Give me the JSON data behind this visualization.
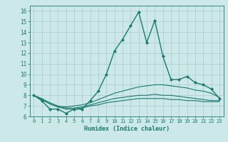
{
  "xlabel": "Humidex (Indice chaleur)",
  "xlim": [
    -0.5,
    23.5
  ],
  "ylim": [
    6,
    16.5
  ],
  "xticks": [
    0,
    1,
    2,
    3,
    4,
    5,
    6,
    7,
    8,
    9,
    10,
    11,
    12,
    13,
    14,
    15,
    16,
    17,
    18,
    19,
    20,
    21,
    22,
    23
  ],
  "yticks": [
    6,
    7,
    8,
    9,
    10,
    11,
    12,
    13,
    14,
    15,
    16
  ],
  "bg_color": "#cce8e8",
  "line_color": "#1a7a6e",
  "grid_color": "#aacccc",
  "lines": [
    {
      "x": [
        0,
        1,
        2,
        3,
        4,
        5,
        6,
        7,
        8,
        9,
        10,
        11,
        12,
        13,
        14,
        15,
        16,
        17,
        18,
        19,
        20,
        21,
        22,
        23
      ],
      "y": [
        8.0,
        7.5,
        6.7,
        6.7,
        6.3,
        6.7,
        6.7,
        7.5,
        8.4,
        10.0,
        12.2,
        13.3,
        14.6,
        15.9,
        13.0,
        15.1,
        11.7,
        9.5,
        9.5,
        9.8,
        9.2,
        9.0,
        8.6,
        7.7
      ],
      "marker": "D",
      "markersize": 2.0,
      "linewidth": 1.0
    },
    {
      "x": [
        0,
        1,
        2,
        3,
        4,
        5,
        6,
        7,
        8,
        9,
        10,
        11,
        12,
        13,
        14,
        15,
        16,
        17,
        18,
        19,
        20,
        21,
        22,
        23
      ],
      "y": [
        8.0,
        7.7,
        7.3,
        7.0,
        6.9,
        7.0,
        7.1,
        7.3,
        7.6,
        7.9,
        8.2,
        8.4,
        8.6,
        8.8,
        8.9,
        9.0,
        9.0,
        8.9,
        8.8,
        8.7,
        8.5,
        8.4,
        8.2,
        7.8
      ],
      "marker": null,
      "markersize": 0,
      "linewidth": 0.8
    },
    {
      "x": [
        0,
        1,
        2,
        3,
        4,
        5,
        6,
        7,
        8,
        9,
        10,
        11,
        12,
        13,
        14,
        15,
        16,
        17,
        18,
        19,
        20,
        21,
        22,
        23
      ],
      "y": [
        8.0,
        7.6,
        7.2,
        6.9,
        6.8,
        6.8,
        6.9,
        7.1,
        7.3,
        7.5,
        7.7,
        7.8,
        7.9,
        8.0,
        8.0,
        8.1,
        8.0,
        8.0,
        7.9,
        7.8,
        7.7,
        7.6,
        7.5,
        7.5
      ],
      "marker": null,
      "markersize": 0,
      "linewidth": 0.8
    },
    {
      "x": [
        0,
        1,
        2,
        3,
        4,
        5,
        6,
        7,
        8,
        9,
        10,
        11,
        12,
        13,
        14,
        15,
        16,
        17,
        18,
        19,
        20,
        21,
        22,
        23
      ],
      "y": [
        8.0,
        7.6,
        7.2,
        6.9,
        6.7,
        6.7,
        6.8,
        7.0,
        7.1,
        7.3,
        7.4,
        7.5,
        7.6,
        7.7,
        7.7,
        7.7,
        7.7,
        7.6,
        7.6,
        7.5,
        7.5,
        7.4,
        7.4,
        7.4
      ],
      "marker": null,
      "markersize": 0,
      "linewidth": 0.8
    }
  ]
}
